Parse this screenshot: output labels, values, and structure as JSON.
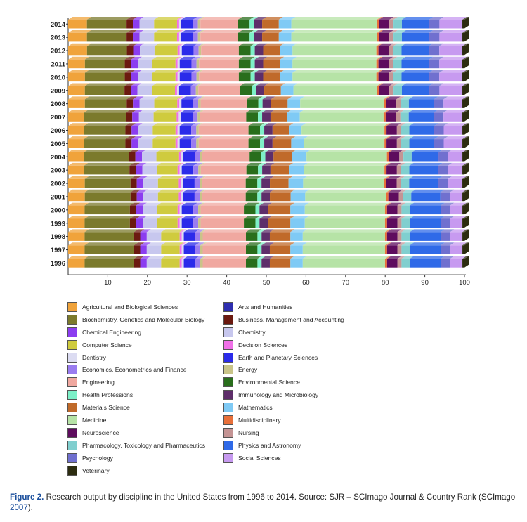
{
  "chart_data": {
    "type": "bar",
    "orientation": "horizontal",
    "stacked": true,
    "percent": true,
    "xlim": [
      0,
      100
    ],
    "xticks": [
      10,
      20,
      30,
      40,
      50,
      60,
      70,
      80,
      90,
      100
    ],
    "categories": [
      "2014",
      "2013",
      "2012",
      "2011",
      "2010",
      "2009",
      "2008",
      "2007",
      "2006",
      "2005",
      "2004",
      "2003",
      "2002",
      "2001",
      "2000",
      "1999",
      "1998",
      "1997",
      "1996"
    ],
    "series": [
      {
        "name": "Agricultural and Biological Sciences",
        "color": "#f0a33b",
        "values": [
          4.5,
          4.5,
          4.5,
          4.0,
          4.0,
          4.0,
          4.0,
          3.8,
          3.8,
          3.8,
          3.8,
          3.8,
          4.0,
          4.0,
          4.0,
          4.0,
          4.0,
          4.0,
          4.0
        ]
      },
      {
        "name": "Biochemistry, Genetics and Molecular Biology",
        "color": "#7b7a2c",
        "values": [
          9.5,
          9.5,
          9.5,
          9.5,
          9.5,
          9.5,
          10.0,
          10.0,
          10.0,
          10.0,
          11.0,
          11.0,
          11.0,
          11.0,
          11.0,
          11.0,
          12.0,
          12.0,
          12.0
        ]
      },
      {
        "name": "Business, Management and Accounting",
        "color": "#6b1a10",
        "values": [
          1.5,
          1.5,
          1.5,
          1.5,
          1.5,
          1.5,
          1.5,
          1.5,
          1.5,
          1.5,
          1.5,
          1.5,
          1.5,
          1.5,
          1.5,
          1.5,
          1.5,
          1.5,
          1.5
        ]
      },
      {
        "name": "Chemical Engineering",
        "color": "#8b3df0",
        "values": [
          1.6,
          1.6,
          1.6,
          1.6,
          1.6,
          1.6,
          1.6,
          1.6,
          1.6,
          1.6,
          1.6,
          1.6,
          1.6,
          1.6,
          1.6,
          1.6,
          1.6,
          1.6,
          1.6
        ]
      },
      {
        "name": "Chemistry",
        "color": "#c7c7ee",
        "values": [
          3.5,
          3.5,
          3.5,
          3.5,
          3.5,
          3.5,
          3.5,
          3.5,
          3.5,
          3.5,
          3.5,
          3.5,
          3.5,
          3.5,
          3.5,
          3.5,
          3.5,
          3.5,
          3.5
        ]
      },
      {
        "name": "Computer Science",
        "color": "#cfcb3e",
        "values": [
          5.5,
          5.5,
          5.5,
          5.5,
          5.5,
          5.5,
          5.5,
          5.5,
          5.5,
          5.5,
          5.5,
          5.0,
          5.0,
          5.0,
          5.0,
          5.0,
          4.5,
          4.5,
          4.5
        ]
      },
      {
        "name": "Decision Sciences",
        "color": "#f070e8",
        "values": [
          0.5,
          0.5,
          0.5,
          0.5,
          0.5,
          0.5,
          0.5,
          0.5,
          0.5,
          0.5,
          0.5,
          0.5,
          0.5,
          0.5,
          0.5,
          0.5,
          0.5,
          0.5,
          0.5
        ]
      },
      {
        "name": "Dentistry",
        "color": "#dcdcf2",
        "values": [
          0.5,
          0.5,
          0.5,
          0.5,
          0.5,
          0.5,
          0.5,
          0.5,
          0.5,
          0.5,
          0.5,
          0.5,
          0.5,
          0.5,
          0.5,
          0.5,
          0.5,
          0.5,
          0.5
        ]
      },
      {
        "name": "Earth and Planetary Sciences",
        "color": "#2b2bea",
        "values": [
          2.8,
          2.8,
          2.8,
          2.8,
          2.8,
          2.8,
          2.8,
          2.8,
          2.8,
          2.8,
          2.8,
          2.8,
          2.8,
          2.8,
          2.8,
          2.8,
          2.8,
          2.8,
          2.8
        ]
      },
      {
        "name": "Economics, Econometrics and Finance",
        "color": "#9a7cf0",
        "values": [
          1.2,
          1.2,
          1.2,
          1.2,
          1.2,
          1.2,
          1.2,
          1.2,
          1.2,
          1.2,
          1.2,
          1.2,
          1.2,
          1.2,
          1.2,
          1.2,
          1.2,
          1.2,
          1.2
        ]
      },
      {
        "name": "Energy",
        "color": "#c9c488",
        "values": [
          0.6,
          0.6,
          0.6,
          0.6,
          0.6,
          0.6,
          0.6,
          0.6,
          0.6,
          0.6,
          0.6,
          0.6,
          0.6,
          0.6,
          0.6,
          0.6,
          0.6,
          0.6,
          0.6
        ]
      },
      {
        "name": "Engineering",
        "color": "#f0a8a0",
        "values": [
          9.0,
          9.0,
          9.0,
          9.5,
          9.5,
          10.0,
          11.0,
          11.0,
          12.0,
          12.0,
          11.5,
          11.0,
          10.5,
          10.5,
          10.5,
          10.5,
          10.5,
          10.5,
          10.5
        ]
      },
      {
        "name": "Environmental Science",
        "color": "#296e1c",
        "values": [
          2.8,
          2.8,
          2.8,
          2.8,
          2.8,
          2.8,
          2.8,
          2.8,
          2.8,
          2.8,
          2.8,
          2.8,
          2.8,
          2.8,
          2.8,
          2.8,
          2.8,
          2.8,
          2.8
        ]
      },
      {
        "name": "Health Professions",
        "color": "#7df0c8",
        "values": [
          1.0,
          1.0,
          1.0,
          1.0,
          1.0,
          1.0,
          1.0,
          1.0,
          1.0,
          1.0,
          1.0,
          1.0,
          1.0,
          1.0,
          1.0,
          1.0,
          1.0,
          1.0,
          1.0
        ]
      },
      {
        "name": "Immunology and Microbiology",
        "color": "#5e2e6a",
        "values": [
          2.0,
          2.0,
          2.0,
          2.0,
          2.0,
          2.0,
          2.0,
          2.0,
          2.0,
          2.0,
          2.0,
          2.0,
          2.0,
          2.0,
          2.0,
          2.0,
          2.0,
          2.0,
          2.0
        ]
      },
      {
        "name": "Materials Science",
        "color": "#c06a2a",
        "values": [
          4.0,
          4.0,
          4.0,
          4.0,
          4.0,
          4.0,
          4.0,
          4.0,
          4.0,
          4.5,
          4.5,
          4.5,
          4.5,
          5.0,
          5.5,
          5.5,
          5.0,
          5.0,
          5.0
        ]
      },
      {
        "name": "Mathematics",
        "color": "#7fcaf5",
        "values": [
          3.0,
          3.0,
          3.0,
          3.0,
          3.0,
          3.0,
          3.0,
          3.0,
          3.0,
          3.0,
          3.5,
          3.5,
          3.5,
          3.5,
          3.5,
          3.5,
          3.0,
          3.0,
          3.0
        ]
      },
      {
        "name": "Medicine",
        "color": "#b6e3a6",
        "values": [
          20.5,
          20.5,
          20.0,
          20.0,
          20.0,
          20.0,
          20.0,
          20.0,
          20.0,
          19.5,
          19.5,
          19.5,
          19.5,
          19.5,
          19.5,
          19.5,
          20.0,
          20.0,
          20.0
        ]
      },
      {
        "name": "Multidisciplinary",
        "color": "#e8703a",
        "values": [
          0.5,
          0.5,
          0.5,
          0.5,
          0.5,
          0.5,
          0.5,
          0.5,
          0.5,
          0.5,
          0.5,
          0.5,
          0.5,
          0.5,
          0.5,
          0.5,
          0.5,
          0.5,
          0.5
        ]
      },
      {
        "name": "Neuroscience",
        "color": "#5e0c5e",
        "values": [
          2.5,
          2.5,
          2.5,
          2.5,
          2.5,
          2.5,
          2.5,
          2.5,
          2.5,
          2.5,
          2.5,
          2.5,
          2.5,
          2.5,
          2.5,
          2.5,
          2.5,
          2.5,
          2.5
        ]
      },
      {
        "name": "Nursing",
        "color": "#c49494",
        "values": [
          1.0,
          1.0,
          1.0,
          1.0,
          1.0,
          1.0,
          1.0,
          1.0,
          1.0,
          1.0,
          1.0,
          1.0,
          1.0,
          1.0,
          1.0,
          1.0,
          1.0,
          1.0,
          1.0
        ]
      },
      {
        "name": "Pharmacology, Toxicology and Pharmaceutics",
        "color": "#80cfcf",
        "values": [
          2.0,
          2.0,
          2.0,
          2.0,
          2.0,
          2.0,
          2.0,
          2.0,
          2.0,
          2.0,
          2.0,
          2.0,
          2.0,
          2.0,
          2.0,
          2.0,
          2.0,
          2.0,
          2.0
        ]
      },
      {
        "name": "Physics and Astronomy",
        "color": "#2f6ae8",
        "values": [
          6.5,
          6.5,
          6.5,
          6.5,
          6.5,
          6.5,
          6.0,
          6.0,
          6.0,
          6.0,
          6.5,
          7.0,
          7.0,
          7.0,
          7.5,
          7.5,
          7.5,
          7.5,
          7.5
        ]
      },
      {
        "name": "Psychology",
        "color": "#7070cf",
        "values": [
          2.5,
          2.5,
          2.5,
          2.5,
          2.5,
          2.5,
          2.3,
          2.3,
          2.3,
          2.3,
          2.3,
          2.3,
          2.3,
          2.3,
          2.3,
          2.3,
          2.3,
          2.3,
          2.3
        ]
      },
      {
        "name": "Social Sciences",
        "color": "#c79af0",
        "values": [
          5.5,
          5.5,
          5.5,
          5.5,
          5.5,
          5.5,
          4.5,
          4.5,
          4.5,
          4.5,
          3.5,
          3.5,
          3.5,
          3.0,
          3.0,
          3.0,
          3.0,
          3.0,
          3.0
        ]
      },
      {
        "name": "Veterinary",
        "color": "#2c2c10",
        "values": [
          0.5,
          0.5,
          0.5,
          0.5,
          0.5,
          0.5,
          0.5,
          0.5,
          0.5,
          0.5,
          0.5,
          0.5,
          0.5,
          0.5,
          0.5,
          0.5,
          0.5,
          0.5,
          0.5
        ]
      }
    ]
  },
  "legend_left": [
    "Agricultural and Biological Sciences",
    "Biochemistry, Genetics and Molecular Biology",
    "Chemical Engineering",
    "Computer Science",
    "Dentistry",
    "Economics, Econometrics and Finance",
    "Engineering",
    "Health Professions",
    "Materials Science",
    "Medicine",
    "Neuroscience",
    "Pharmacology, Toxicology and Pharmaceutics",
    "Psychology",
    "Veterinary"
  ],
  "legend_right": [
    "Arts and Humanities",
    "Business, Management and Accounting",
    "Chemistry",
    "Decision Sciences",
    "Earth and Planetary Sciences",
    "Energy",
    "Environmental Science",
    "Immunology and Microbiology",
    "Mathematics",
    "Multidisciplinary",
    "Nursing",
    "Physics and Astronomy",
    "Social Sciences"
  ],
  "extra_colors": {
    "Arts and Humanities": "#2e2eb0"
  },
  "caption": {
    "label": "Figure 2.",
    "text": "Research output by discipline in the United States from 1996 to 2014. Source: SJR – SCImago Journal & Country Rank (SCImago ",
    "year": "2007",
    "end": ")."
  }
}
